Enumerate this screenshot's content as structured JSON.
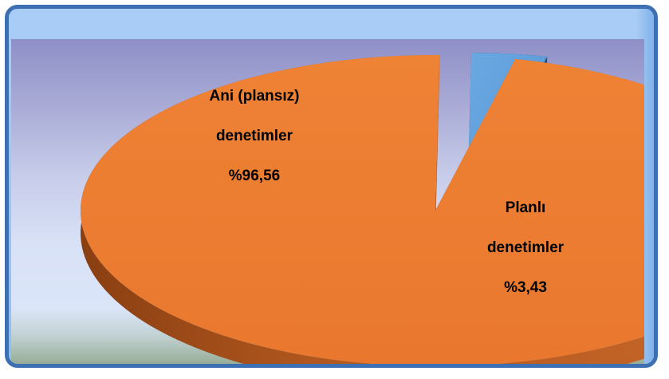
{
  "chart_data": {
    "type": "pie",
    "three_d": true,
    "exploded": true,
    "slices": [
      {
        "name": "Ani (plansız) denetimler",
        "label_line1": "Ani (plansız)",
        "label_line2": "denetimler",
        "percent_label": "%96,56",
        "value": 96.56,
        "color": "#ed7d31"
      },
      {
        "name": "Planlı denetimler",
        "label_line1": "Planlı",
        "label_line2": "denetimler",
        "percent_label": "%3,43",
        "value": 3.43,
        "color": "#5b9bd5"
      }
    ]
  }
}
